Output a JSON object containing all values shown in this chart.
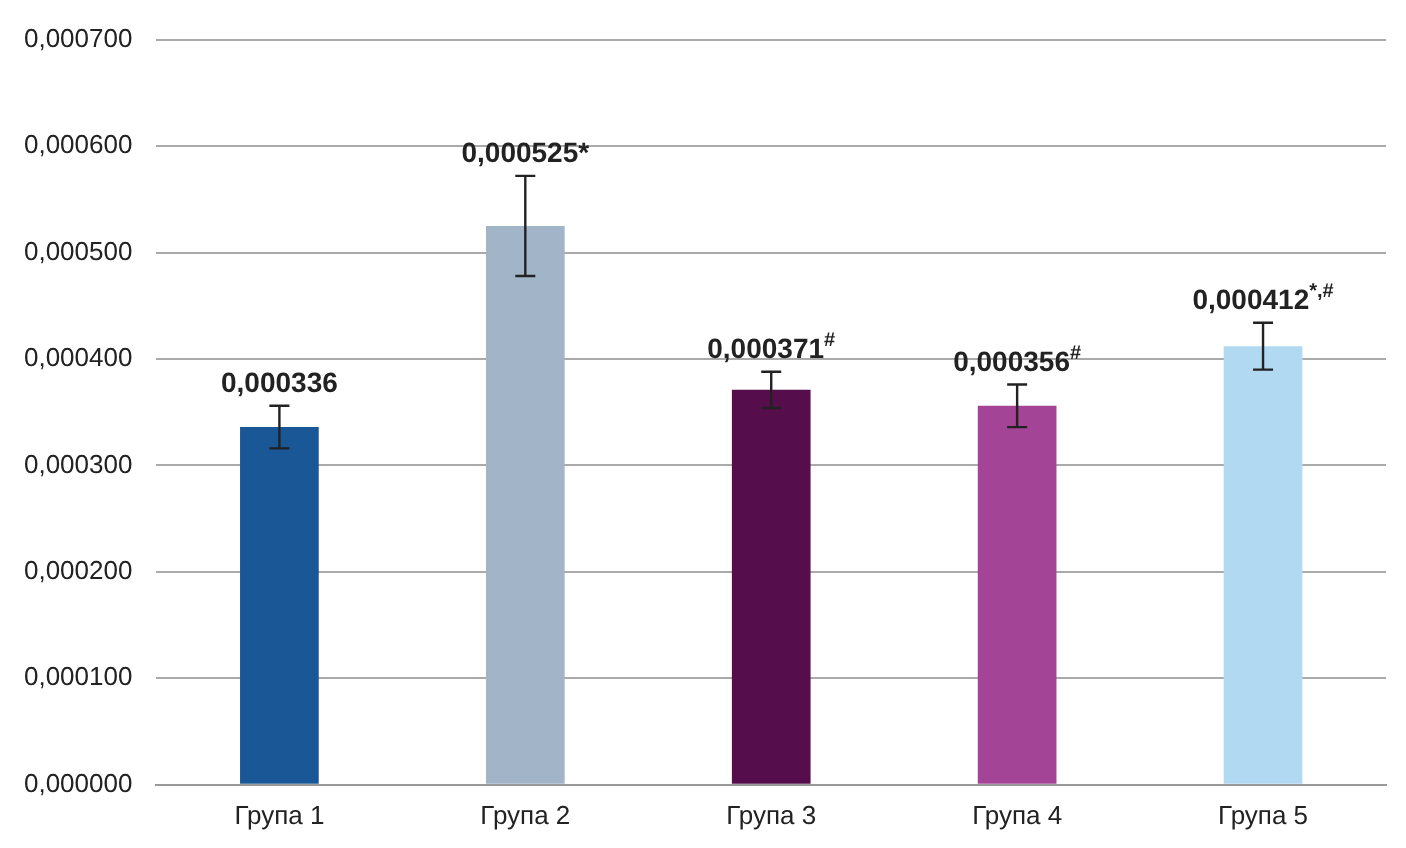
{
  "chart_data": {
    "type": "bar",
    "categories": [
      "Група 1",
      "Група 2",
      "Група 3",
      "Група 4",
      "Група 5"
    ],
    "values": [
      0.000336,
      0.000525,
      0.000371,
      0.000356,
      0.000412
    ],
    "colors": [
      "#1a5796",
      "#a2b5c8",
      "#560d4b",
      "#a44497",
      "#b2d9f2"
    ],
    "errors": [
      2e-05,
      4.7e-05,
      1.7e-05,
      2e-05,
      2.2e-05
    ],
    "value_labels": [
      "0,000336",
      "0,000525*",
      "0,000371$^{#}$",
      "0,000356$^{#}$",
      "0,000412$^{*,#}$"
    ],
    "ylim": [
      0,
      0.0007
    ],
    "yticks": [
      {
        "value": 0,
        "label": "0,000000"
      },
      {
        "value": 0.0001,
        "label": "0,000100"
      },
      {
        "value": 0.0002,
        "label": "0,000200"
      },
      {
        "value": 0.0003,
        "label": "0,000300"
      },
      {
        "value": 0.0004,
        "label": "0,000400"
      },
      {
        "value": 0.0005,
        "label": "0,000500"
      },
      {
        "value": 0.0006,
        "label": "0,000600"
      },
      {
        "value": 0.0007,
        "label": "0,000700"
      }
    ],
    "grid": "y"
  }
}
